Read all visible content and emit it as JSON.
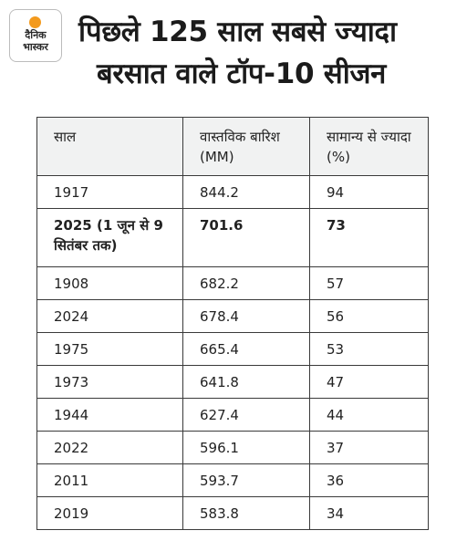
{
  "brand": {
    "name_line1": "दैनिक",
    "name_line2": "भास्कर",
    "accent_color": "#f39a1d"
  },
  "title": {
    "line1": "पिछले 125 साल सबसे ज्यादा",
    "line2": "बरसात वाले टॉप-10 सीजन"
  },
  "table": {
    "headers": [
      "साल",
      "वास्तविक बारिश (MM)",
      "सामान्य से ज्यादा (%)"
    ],
    "rows": [
      {
        "year": "1917",
        "rain": "844.2",
        "pct": "94"
      },
      {
        "year": "2025 (1 जून से 9 सितंबर तक)",
        "rain": "701.6",
        "pct": "73"
      },
      {
        "year": "1908",
        "rain": "682.2",
        "pct": "57"
      },
      {
        "year": "2024",
        "rain": "678.4",
        "pct": "56"
      },
      {
        "year": "1975",
        "rain": "665.4",
        "pct": "53"
      },
      {
        "year": "1973",
        "rain": "641.8",
        "pct": "47"
      },
      {
        "year": "1944",
        "rain": "627.4",
        "pct": "44"
      },
      {
        "year": "2022",
        "rain": "596.1",
        "pct": "37"
      },
      {
        "year": "2011",
        "rain": "593.7",
        "pct": "36"
      },
      {
        "year": "2019",
        "rain": "583.8",
        "pct": "34"
      }
    ]
  }
}
